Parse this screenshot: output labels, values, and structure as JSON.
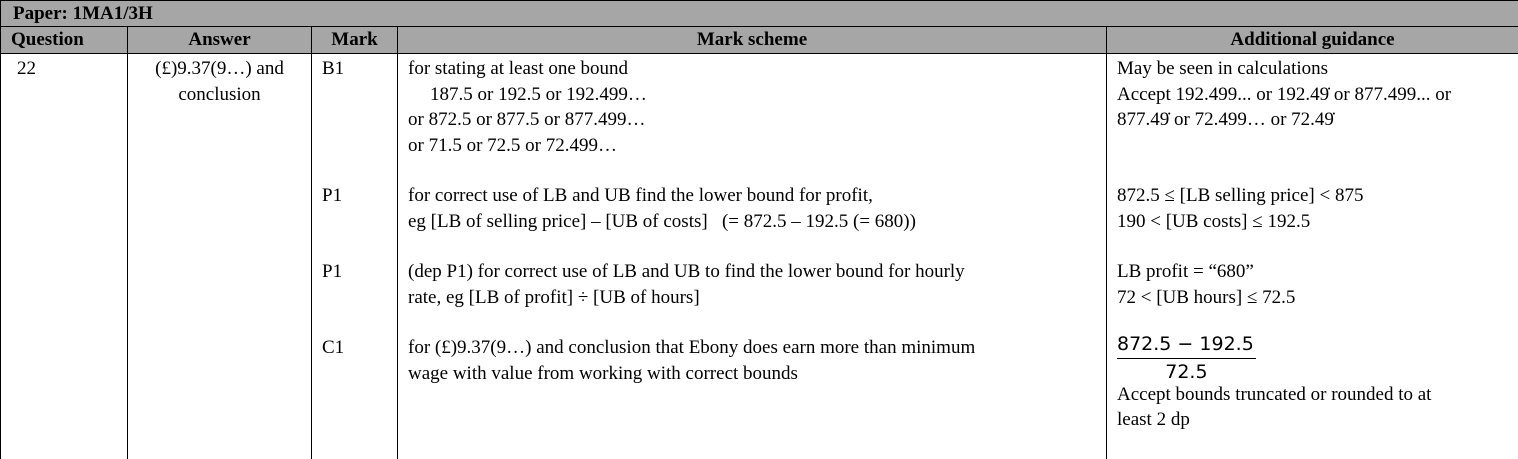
{
  "paper": "Paper: 1MA1/3H",
  "headers": {
    "question": "Question",
    "answer": "Answer",
    "mark": "Mark",
    "mark_scheme": "Mark scheme",
    "guidance": "Additional guidance"
  },
  "row": {
    "question": "22",
    "answer_line1": "(£)9.37(9…) and",
    "answer_line2": "conclusion",
    "marks": [
      "B1",
      "P1",
      "P1",
      "C1"
    ],
    "scheme": {
      "b1": [
        "for stating at least one bound",
        "187.5 or 192.5 or 192.499…",
        "or 872.5 or 877.5 or 877.499…",
        "or 71.5 or 72.5 or 72.499…"
      ],
      "p1a": [
        "for correct use of LB and UB find the lower bound for profit,",
        "eg [LB of selling price] – [UB of costs]   (= 872.5 – 192.5 (= 680))"
      ],
      "p1b": [
        "(dep P1) for correct use of LB and UB to find the lower bound for hourly",
        "rate, eg [LB of profit] ÷ [UB of hours]"
      ],
      "c1": [
        "for (£)9.37(9…) and conclusion that Ebony does earn more than minimum",
        "wage with value from working with correct bounds"
      ]
    },
    "guidance": {
      "b1": [
        "May be seen in calculations",
        "Accept 192.499... or 192.49̇ or 877.499... or",
        "877.49̇ or 72.499… or 72.49̇"
      ],
      "p1a": [
        "872.5 ≤ [LB selling price] < 875",
        "190 < [UB costs] ≤ 192.5"
      ],
      "p1b": [
        "LB profit = “680”",
        "72 < [UB hours] ≤ 72.5"
      ],
      "c1_frac_num": "872.5 − 192.5",
      "c1_frac_den": "72.5",
      "c1": [
        "Accept bounds truncated or rounded to at",
        "least 2 dp"
      ]
    }
  }
}
